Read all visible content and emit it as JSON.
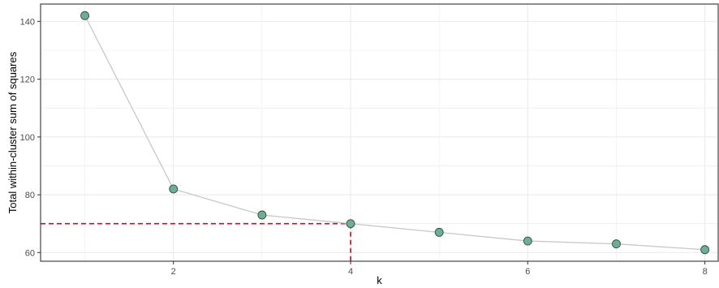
{
  "chart_data": {
    "type": "line",
    "title": "",
    "xlabel": "k",
    "ylabel": "Total within-cluster sum of squares",
    "x": [
      1,
      2,
      3,
      4,
      5,
      6,
      7,
      8
    ],
    "series": [
      {
        "values": [
          142,
          82,
          73,
          70,
          67,
          64,
          63,
          61
        ]
      }
    ],
    "xlim": [
      0.5,
      8.15
    ],
    "ylim": [
      57,
      146
    ],
    "x_ticks": [
      2,
      4,
      6,
      8
    ],
    "y_ticks": [
      60,
      80,
      100,
      120,
      140
    ],
    "grid": true,
    "reference_lines": {
      "x": 4,
      "y": 70,
      "style": "dashed",
      "color": "#c0111f"
    },
    "colors": {
      "line": "#c8c8c8",
      "point_fill": "#6fae94",
      "point_stroke": "#2f4f45",
      "grid": "#ebebeb",
      "panel_border": "#333333"
    }
  }
}
